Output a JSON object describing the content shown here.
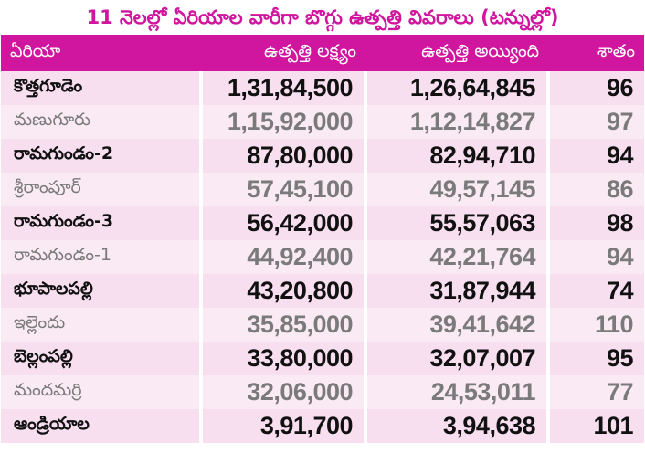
{
  "title": "11 నెలల్లో ఏరియాల వారీగా బొగ్గు ఉత్పత్తి వివరాలు (టన్నుల్లో)",
  "header": {
    "area": "ఏరియా",
    "target": "ఉత్పత్తి లక్ష్యం",
    "achieved": "ఉత్పత్తి అయ్యింది",
    "percent": "శాతం"
  },
  "rows": [
    {
      "area": "కొత్తగూడెం",
      "target": "1,31,84,500",
      "achieved": "1,26,64,845",
      "percent": "96"
    },
    {
      "area": "మణుగూరు",
      "target": "1,15,92,000",
      "achieved": "1,12,14,827",
      "percent": "97"
    },
    {
      "area": "రామగుండం-2",
      "target": "87,80,000",
      "achieved": "82,94,710",
      "percent": "94"
    },
    {
      "area": "శ్రీరాంపూర్",
      "target": "57,45,100",
      "achieved": "49,57,145",
      "percent": "86"
    },
    {
      "area": "రామగుండం-3",
      "target": "56,42,000",
      "achieved": "55,57,063",
      "percent": "98"
    },
    {
      "area": "రామగుండం-1",
      "target": "44,92,400",
      "achieved": "42,21,764",
      "percent": "94"
    },
    {
      "area": "భూపాలపల్లి",
      "target": "43,20,800",
      "achieved": "31,87,944",
      "percent": "74"
    },
    {
      "area": "ఇల్లెందు",
      "target": "35,85,000",
      "achieved": "39,41,642",
      "percent": "110"
    },
    {
      "area": "బెల్లంపల్లి",
      "target": "33,80,000",
      "achieved": "32,07,007",
      "percent": "95"
    },
    {
      "area": "మందమర్రి",
      "target": "32,06,000",
      "achieved": "24,53,011",
      "percent": "77"
    },
    {
      "area": "ఆండ్రియాల",
      "target": "3,91,700",
      "achieved": "3,94,638",
      "percent": "101"
    }
  ],
  "colors": {
    "accent": "#d0159e",
    "row_odd": "#f8dff0",
    "row_even": "#faeaf4"
  }
}
